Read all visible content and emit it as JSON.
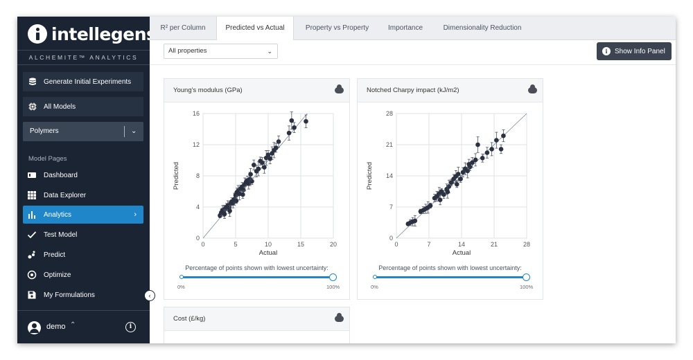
{
  "sidebar": {
    "logo_text": "intellegens",
    "tagline": "ALCHEMITE™ ANALYTICS",
    "buttons": [
      {
        "label": "Generate Initial Experiments",
        "icon": "database-icon"
      },
      {
        "label": "All Models",
        "icon": "chip-icon"
      }
    ],
    "dataset_select": "Polymers",
    "section_label": "Model Pages",
    "nav": [
      {
        "label": "Dashboard",
        "icon": "film-icon",
        "active": false
      },
      {
        "label": "Data Explorer",
        "icon": "grid-icon",
        "active": false
      },
      {
        "label": "Analytics",
        "icon": "bar-chart-icon",
        "active": true
      },
      {
        "label": "Test Model",
        "icon": "check-icon",
        "active": false
      },
      {
        "label": "Predict",
        "icon": "scatter-icon",
        "active": false
      },
      {
        "label": "Optimize",
        "icon": "target-icon",
        "active": false
      },
      {
        "label": "My Formulations",
        "icon": "save-icon",
        "active": false
      }
    ],
    "user": "demo"
  },
  "tabs": [
    "R² per Column",
    "Predicted vs Actual",
    "Property vs Property",
    "Importance",
    "Dimensionality Reduction"
  ],
  "active_tab": "Predicted vs Actual",
  "toolbar": {
    "property_select": "All properties",
    "info_button": "Show Info Panel"
  },
  "slider": {
    "label": "Percentage of points shown with lowest uncertainty:",
    "min_label": "0%",
    "max_label": "100%",
    "value_percent": 100
  },
  "cards": [
    {
      "title": "Young's modulus (GPa)"
    },
    {
      "title": "Notched Charpy impact (kJ/m2)"
    },
    {
      "title": "Cost (£/kg)"
    }
  ],
  "chart_data": [
    {
      "type": "scatter",
      "title": "Young's modulus (GPa)",
      "xlabel": "Actual",
      "ylabel": "Predicted",
      "xlim": [
        0,
        20
      ],
      "ylim": [
        0,
        16
      ],
      "xticks": [
        0,
        5,
        10,
        15,
        20
      ],
      "yticks": [
        0,
        4,
        8,
        12,
        16
      ],
      "grid": true,
      "diagonal": true,
      "error_bars": true,
      "points": [
        [
          2.6,
          2.9
        ],
        [
          2.8,
          3.3
        ],
        [
          3.0,
          3.6
        ],
        [
          3.2,
          3.5
        ],
        [
          3.4,
          3.8
        ],
        [
          3.6,
          4.0
        ],
        [
          3.8,
          4.2
        ],
        [
          4.0,
          3.9
        ],
        [
          4.2,
          4.4
        ],
        [
          4.4,
          4.7
        ],
        [
          4.6,
          4.5
        ],
        [
          4.8,
          5.0
        ],
        [
          5.0,
          5.5
        ],
        [
          5.2,
          5.9
        ],
        [
          5.4,
          6.1
        ],
        [
          5.6,
          5.7
        ],
        [
          5.8,
          6.4
        ],
        [
          6.0,
          6.6
        ],
        [
          6.2,
          6.2
        ],
        [
          6.4,
          6.9
        ],
        [
          6.6,
          7.2
        ],
        [
          6.8,
          7.4
        ],
        [
          7.0,
          7.0
        ],
        [
          7.2,
          7.6
        ],
        [
          7.5,
          7.3
        ],
        [
          7.8,
          9.4
        ],
        [
          8.2,
          8.6
        ],
        [
          8.5,
          8.9
        ],
        [
          8.8,
          9.9
        ],
        [
          9.1,
          9.7
        ],
        [
          9.4,
          9.1
        ],
        [
          9.7,
          10.3
        ],
        [
          10.0,
          10.7
        ],
        [
          10.3,
          10.2
        ],
        [
          10.6,
          10.9
        ],
        [
          10.9,
          11.3
        ],
        [
          11.2,
          11.6
        ],
        [
          11.6,
          12.4
        ],
        [
          13.2,
          13.5
        ],
        [
          13.6,
          15.1
        ],
        [
          14.0,
          14.2
        ],
        [
          15.8,
          15.0
        ],
        [
          3.3,
          3.1
        ],
        [
          4.1,
          3.5
        ],
        [
          5.1,
          4.8
        ],
        [
          6.1,
          5.6
        ],
        [
          7.3,
          8.2
        ]
      ]
    },
    {
      "type": "scatter",
      "title": "Notched Charpy impact (kJ/m2)",
      "xlabel": "Actual",
      "ylabel": "Predicted",
      "xlim": [
        0,
        28
      ],
      "ylim": [
        0,
        28
      ],
      "xticks": [
        0,
        7,
        14,
        21,
        28
      ],
      "yticks": [
        0,
        7,
        14,
        21,
        28
      ],
      "grid": true,
      "diagonal": true,
      "error_bars": true,
      "points": [
        [
          2.5,
          3.2
        ],
        [
          3.0,
          3.5
        ],
        [
          3.5,
          3.7
        ],
        [
          4.0,
          3.9
        ],
        [
          5.2,
          6.0
        ],
        [
          5.8,
          6.3
        ],
        [
          6.3,
          6.6
        ],
        [
          6.8,
          6.9
        ],
        [
          7.3,
          7.3
        ],
        [
          8.2,
          9.0
        ],
        [
          8.7,
          9.4
        ],
        [
          9.2,
          10.0
        ],
        [
          9.7,
          10.5
        ],
        [
          10.2,
          9.8
        ],
        [
          10.8,
          11.0
        ],
        [
          11.3,
          11.6
        ],
        [
          11.8,
          12.5
        ],
        [
          12.3,
          13.3
        ],
        [
          12.8,
          13.9
        ],
        [
          13.3,
          14.4
        ],
        [
          13.8,
          13.3
        ],
        [
          14.3,
          14.8
        ],
        [
          14.8,
          15.6
        ],
        [
          15.3,
          15.1
        ],
        [
          15.8,
          16.0
        ],
        [
          16.3,
          17.0
        ],
        [
          17.0,
          17.6
        ],
        [
          17.5,
          21.0
        ],
        [
          18.5,
          18.0
        ],
        [
          19.5,
          19.2
        ],
        [
          20.5,
          20.0
        ],
        [
          21.5,
          22.0
        ],
        [
          22.5,
          20.0
        ],
        [
          23.0,
          23.0
        ],
        [
          9.4,
          8.6
        ],
        [
          11.0,
          10.4
        ],
        [
          13.0,
          12.1
        ],
        [
          15.6,
          16.6
        ]
      ]
    },
    {
      "type": "scatter",
      "title": "Cost (£/kg)",
      "xlabel": "",
      "ylabel": "",
      "points": []
    }
  ]
}
